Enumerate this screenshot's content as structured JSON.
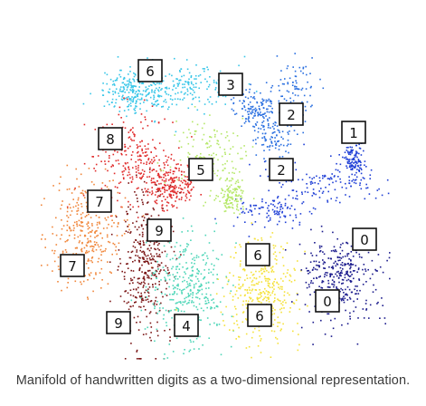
{
  "caption": "Manifold of handwritten digits as a two-dimensional representation.",
  "chart_data": {
    "type": "scatter",
    "title": "",
    "xlabel": "",
    "ylabel": "",
    "grid": false,
    "axes_visible": false,
    "legend": "none",
    "clusters": [
      {
        "digit": "0",
        "color": "#1a1a8c"
      },
      {
        "digit": "1",
        "color": "#1f3fd6"
      },
      {
        "digit": "2",
        "color": "#2a6fe0"
      },
      {
        "digit": "3",
        "color": "#38c6e8"
      },
      {
        "digit": "4",
        "color": "#4fd6b8"
      },
      {
        "digit": "5",
        "color": "#b6e86a"
      },
      {
        "digit": "6",
        "color": "#f5e23a"
      },
      {
        "digit": "7",
        "color": "#f0863a"
      },
      {
        "digit": "8",
        "color": "#e02a2a"
      },
      {
        "digit": "9",
        "color": "#7a1414"
      }
    ],
    "annotations": [
      "6",
      "3",
      "2",
      "1",
      "8",
      "5",
      "2",
      "7",
      "9",
      "6",
      "0",
      "7",
      "6",
      "0",
      "9",
      "4"
    ]
  }
}
